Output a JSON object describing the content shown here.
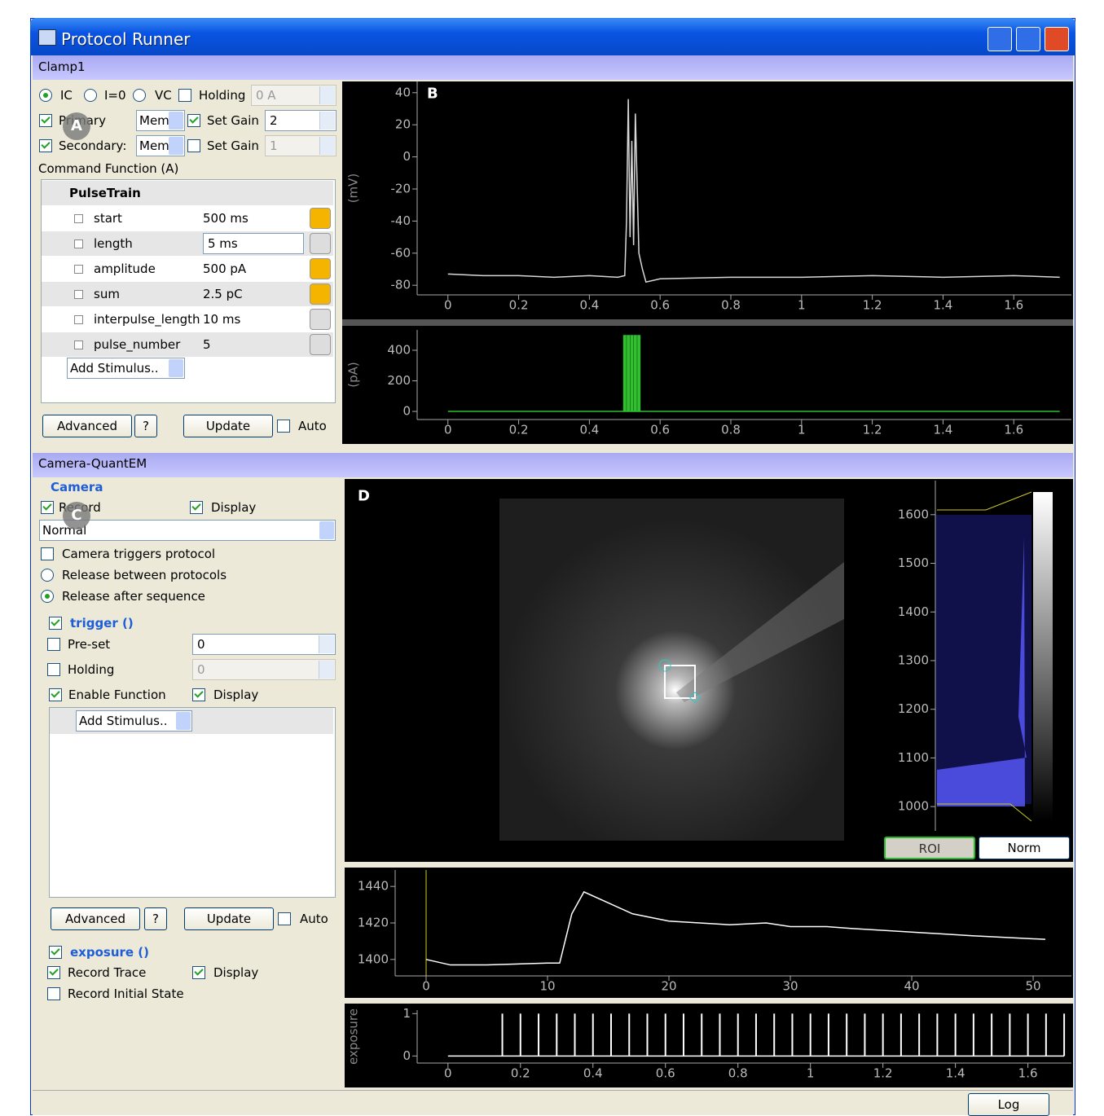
{
  "window": {
    "title": "Protocol Runner",
    "log_button": "Log"
  },
  "badges": {
    "a": "A",
    "b": "B",
    "c": "C",
    "d": "D"
  },
  "clamp": {
    "dock_title": "Clamp1",
    "mode_ic": "IC",
    "mode_i0": "I=0",
    "mode_vc": "VC",
    "holding": "Holding",
    "holding_value": "0 A",
    "primary": {
      "label": "Primary",
      "signal": "Mem",
      "set_gain": "Set Gain",
      "gain": "2"
    },
    "secondary": {
      "label": "Secondary:",
      "signal": "Mem",
      "set_gain": "Set Gain",
      "gain": "1"
    },
    "command_function": "Command Function (A)",
    "root": "PulseTrain",
    "params": [
      {
        "name": "start",
        "value": "500 ms"
      },
      {
        "name": "length",
        "value": "5 ms"
      },
      {
        "name": "amplitude",
        "value": "500 pA"
      },
      {
        "name": "sum",
        "value": "2.5 pC"
      },
      {
        "name": "interpulse_length",
        "value": "10 ms"
      },
      {
        "name": "pulse_number",
        "value": "5"
      }
    ],
    "add_stimulus": "Add Stimulus..",
    "advanced": "Advanced",
    "help": "?",
    "update": "Update",
    "auto": "Auto"
  },
  "camera": {
    "dock_title": "Camera-QuantEM",
    "group": "Camera",
    "record": "Record",
    "display": "Display",
    "mode": "Normal",
    "triggers": "Camera triggers protocol",
    "release_between": "Release between protocols",
    "release_after": "Release after sequence",
    "trigger": {
      "title": "trigger ()",
      "preset": "Pre-set",
      "preset_value": "0",
      "holding": "Holding",
      "holding_value": "0",
      "enable": "Enable Function",
      "display": "Display",
      "add_stimulus": "Add Stimulus..",
      "advanced": "Advanced",
      "help": "?",
      "update": "Update",
      "auto": "Auto"
    },
    "exposure": {
      "title": "exposure ()",
      "record_trace": "Record Trace",
      "display": "Display",
      "record_initial": "Record Initial State"
    }
  },
  "histogram": {
    "ylim": [
      950,
      1670
    ],
    "yticks": [
      1000,
      1100,
      1200,
      1300,
      1400,
      1500,
      1600
    ],
    "roi": "ROI",
    "norm": "Norm"
  },
  "plots": [
    {
      "type": "line",
      "ylabel": "(mV)",
      "xlim": [
        -0.087,
        1.763
      ],
      "ylim": [
        -86,
        47
      ],
      "xticks": [
        0,
        0.2,
        0.4,
        0.6,
        0.8,
        1,
        1.2,
        1.4,
        1.6
      ],
      "yticks": [
        -80,
        -60,
        -40,
        -20,
        0,
        20,
        40
      ],
      "series": [
        {
          "color": "#d8d8d8",
          "x": [
            0,
            0.1,
            0.2,
            0.3,
            0.4,
            0.48,
            0.5,
            0.505,
            0.51,
            0.515,
            0.52,
            0.525,
            0.53,
            0.54,
            0.55,
            0.56,
            0.6,
            0.8,
            1.0,
            1.2,
            1.4,
            1.6,
            1.73
          ],
          "values": [
            -73,
            -74,
            -74,
            -75,
            -74,
            -75,
            -74,
            -40,
            36,
            -50,
            10,
            -55,
            27,
            -60,
            -70,
            -78,
            -76,
            -75,
            -75,
            -74,
            -75,
            -74,
            -75
          ]
        }
      ]
    },
    {
      "type": "pulses",
      "ylabel": "(pA)",
      "xlim": [
        -0.087,
        1.763
      ],
      "ylim": [
        -53,
        533
      ],
      "xticks": [
        0,
        0.2,
        0.4,
        0.6,
        0.8,
        1,
        1.2,
        1.4,
        1.6
      ],
      "yticks": [
        0,
        200,
        400
      ],
      "series": [
        {
          "color": "#2fbf2f",
          "x": [
            0,
            1.73
          ],
          "values": [
            0,
            0
          ]
        },
        {
          "color": "#2fbf2f",
          "x": [
            0.5,
            0.51,
            0.52,
            0.53,
            0.54
          ],
          "values": [
            500,
            500,
            500,
            500,
            500
          ]
        }
      ]
    },
    {
      "type": "line",
      "xlim": [
        -2.55,
        53.15
      ],
      "ylim": [
        1391,
        1449
      ],
      "xticks": [
        0,
        10,
        20,
        30,
        40,
        50
      ],
      "yticks": [
        1400,
        1420,
        1440
      ],
      "series": [
        {
          "color": "#ffffff",
          "x": [
            0,
            2,
            5,
            10,
            11,
            12,
            13,
            15,
            17,
            20,
            25,
            28,
            30,
            33,
            35,
            40,
            45,
            51
          ],
          "values": [
            1400,
            1397,
            1397,
            1398,
            1398,
            1425,
            1437,
            1431,
            1425,
            1421,
            1419,
            1420,
            1418,
            1418,
            1417,
            1415,
            1413,
            1411
          ]
        }
      ]
    },
    {
      "type": "pulses",
      "ylabel": "exposure",
      "xlim": [
        -0.085,
        1.72
      ],
      "ylim": [
        -0.167,
        1.083
      ],
      "xticks": [
        0,
        0.2,
        0.4,
        0.6,
        0.8,
        1,
        1.2,
        1.4,
        1.6
      ],
      "yticks": [
        0,
        1
      ],
      "series": [
        {
          "color": "#ffffff",
          "x": [
            0,
            1.7
          ],
          "values": [
            0,
            0
          ]
        },
        {
          "color": "#ffffff",
          "x": [
            0.15,
            0.2,
            0.25,
            0.3,
            0.35,
            0.4,
            0.45,
            0.5,
            0.55,
            0.6,
            0.65,
            0.7,
            0.75,
            0.8,
            0.85,
            0.9,
            0.95,
            1.0,
            1.05,
            1.1,
            1.15,
            1.2,
            1.25,
            1.3,
            1.35,
            1.4,
            1.45,
            1.5,
            1.55,
            1.6,
            1.65,
            1.7
          ],
          "values": [
            1,
            1,
            1,
            1,
            1,
            1,
            1,
            1,
            1,
            1,
            1,
            1,
            1,
            1,
            1,
            1,
            1,
            1,
            1,
            1,
            1,
            1,
            1,
            1,
            1,
            1,
            1,
            1,
            1,
            1,
            1,
            1
          ]
        }
      ]
    }
  ]
}
